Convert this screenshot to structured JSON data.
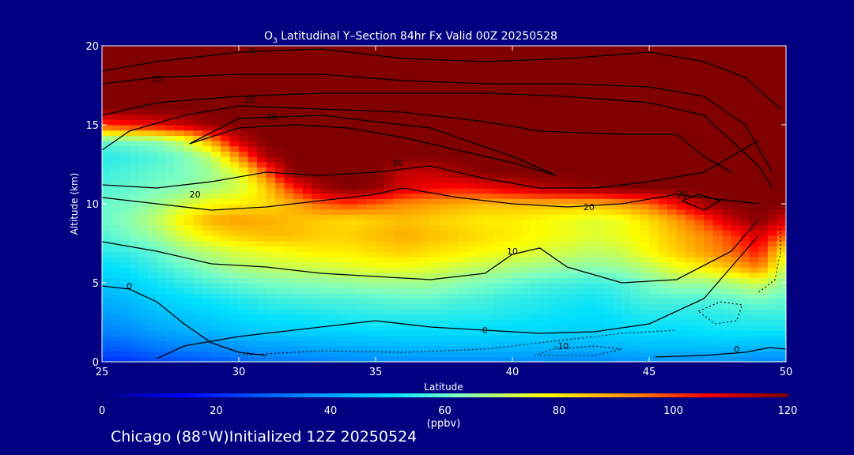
{
  "chart_data": {
    "type": "heatmap",
    "title_main": "O",
    "title_sub": "3",
    "title_rest": " Latitudinal Y–Section 84hr  Fx Valid 00Z 20250528",
    "xlabel": "Latitude",
    "ylabel": "Altitude (km)",
    "xlim": [
      25,
      50
    ],
    "ylim": [
      0,
      20
    ],
    "x_ticks": [
      "25",
      "30",
      "35",
      "40",
      "45",
      "50"
    ],
    "y_ticks": [
      "0",
      "5",
      "10",
      "15",
      "20"
    ],
    "colorbar": {
      "ticks": [
        "0",
        "20",
        "40",
        "60",
        "80",
        "100",
        "120"
      ],
      "unit_label": "(ppbv)",
      "range": [
        0,
        120
      ],
      "colors": [
        "#000080",
        "#0000ff",
        "#0080ff",
        "#00e0ff",
        "#80ffc0",
        "#ffff00",
        "#ff8000",
        "#ff0000",
        "#800000"
      ]
    },
    "contour_labels": [
      "0",
      "10",
      "20",
      "30",
      "-10"
    ],
    "rows_altitude_km": [
      0,
      1,
      2,
      3,
      4,
      5,
      6,
      7,
      8,
      9,
      10,
      11,
      12,
      13,
      14,
      15,
      16,
      17,
      18,
      19,
      20
    ],
    "cols_latitude": [
      25,
      26,
      27,
      28,
      29,
      30,
      31,
      32,
      33,
      34,
      35,
      36,
      37,
      38,
      39,
      40,
      41,
      42,
      43,
      44,
      45,
      46,
      47,
      48,
      49,
      50
    ],
    "ozone_ppbv": [
      [
        22,
        22,
        25,
        26,
        28,
        30,
        32,
        33,
        34,
        35,
        36,
        36,
        36,
        36,
        36,
        36,
        36,
        35,
        35,
        36,
        37,
        37,
        37,
        37,
        35,
        35
      ],
      [
        28,
        30,
        33,
        35,
        36,
        38,
        40,
        40,
        42,
        42,
        43,
        44,
        44,
        44,
        44,
        44,
        44,
        43,
        43,
        44,
        45,
        45,
        45,
        45,
        44,
        44
      ],
      [
        34,
        36,
        40,
        42,
        44,
        46,
        47,
        48,
        48,
        49,
        50,
        50,
        50,
        50,
        50,
        49,
        49,
        48,
        48,
        49,
        50,
        50,
        51,
        52,
        52,
        52
      ],
      [
        38,
        41,
        44,
        46,
        48,
        50,
        52,
        52,
        53,
        54,
        55,
        55,
        55,
        54,
        54,
        53,
        52,
        51,
        50,
        52,
        54,
        54,
        54,
        55,
        56,
        56
      ],
      [
        42,
        44,
        48,
        50,
        52,
        54,
        56,
        57,
        58,
        58,
        59,
        60,
        60,
        58,
        57,
        55,
        54,
        53,
        52,
        55,
        58,
        58,
        58,
        60,
        62,
        60
      ],
      [
        46,
        48,
        52,
        55,
        58,
        60,
        62,
        63,
        64,
        65,
        66,
        66,
        66,
        64,
        62,
        60,
        58,
        57,
        56,
        58,
        62,
        66,
        66,
        68,
        72,
        64
      ],
      [
        50,
        52,
        56,
        60,
        64,
        68,
        70,
        72,
        72,
        74,
        76,
        76,
        75,
        72,
        70,
        68,
        66,
        65,
        64,
        66,
        70,
        76,
        80,
        86,
        94,
        70
      ],
      [
        54,
        56,
        60,
        66,
        70,
        74,
        76,
        78,
        80,
        80,
        82,
        84,
        82,
        80,
        78,
        76,
        74,
        72,
        70,
        72,
        78,
        84,
        90,
        96,
        104,
        78
      ],
      [
        58,
        62,
        66,
        74,
        80,
        84,
        86,
        86,
        84,
        84,
        86,
        88,
        86,
        84,
        82,
        80,
        78,
        76,
        74,
        76,
        80,
        86,
        92,
        100,
        110,
        96
      ],
      [
        60,
        64,
        70,
        80,
        88,
        90,
        88,
        86,
        84,
        82,
        84,
        86,
        84,
        82,
        80,
        80,
        78,
        76,
        74,
        76,
        82,
        90,
        100,
        112,
        120,
        110
      ],
      [
        60,
        62,
        66,
        72,
        78,
        80,
        82,
        88,
        96,
        100,
        96,
        92,
        90,
        88,
        86,
        86,
        86,
        86,
        86,
        90,
        96,
        106,
        116,
        120,
        120,
        120
      ],
      [
        58,
        60,
        62,
        64,
        68,
        72,
        84,
        102,
        116,
        120,
        118,
        110,
        106,
        104,
        106,
        110,
        114,
        116,
        118,
        120,
        120,
        120,
        120,
        120,
        120,
        120
      ],
      [
        56,
        58,
        60,
        62,
        66,
        74,
        96,
        120,
        120,
        120,
        120,
        112,
        112,
        116,
        120,
        120,
        120,
        120,
        120,
        120,
        120,
        120,
        120,
        120,
        120,
        120
      ],
      [
        54,
        56,
        58,
        62,
        70,
        92,
        116,
        120,
        120,
        120,
        120,
        120,
        120,
        120,
        120,
        120,
        120,
        120,
        120,
        120,
        120,
        120,
        120,
        120,
        120,
        120
      ],
      [
        60,
        62,
        64,
        72,
        90,
        112,
        120,
        120,
        120,
        120,
        120,
        120,
        120,
        120,
        120,
        120,
        120,
        120,
        120,
        120,
        120,
        120,
        120,
        120,
        120,
        120
      ],
      [
        100,
        104,
        108,
        112,
        118,
        120,
        120,
        120,
        120,
        120,
        120,
        120,
        120,
        120,
        120,
        120,
        120,
        120,
        120,
        120,
        120,
        120,
        120,
        120,
        120,
        120
      ],
      [
        120,
        120,
        120,
        120,
        120,
        120,
        120,
        120,
        120,
        120,
        120,
        120,
        120,
        120,
        120,
        120,
        120,
        120,
        120,
        120,
        120,
        120,
        120,
        120,
        120,
        120
      ],
      [
        120,
        120,
        120,
        120,
        120,
        120,
        120,
        120,
        120,
        120,
        120,
        120,
        120,
        120,
        120,
        120,
        120,
        120,
        120,
        120,
        120,
        120,
        120,
        120,
        120,
        120
      ],
      [
        120,
        120,
        120,
        120,
        120,
        120,
        120,
        120,
        120,
        120,
        120,
        120,
        120,
        120,
        120,
        120,
        120,
        120,
        120,
        120,
        120,
        120,
        120,
        120,
        120,
        120
      ],
      [
        120,
        120,
        120,
        120,
        120,
        120,
        120,
        120,
        120,
        120,
        120,
        120,
        120,
        120,
        120,
        120,
        120,
        120,
        120,
        120,
        120,
        120,
        120,
        120,
        120,
        120
      ],
      [
        120,
        120,
        120,
        120,
        120,
        120,
        120,
        120,
        120,
        120,
        120,
        120,
        120,
        120,
        120,
        120,
        120,
        120,
        120,
        120,
        120,
        120,
        120,
        120,
        120,
        120
      ]
    ]
  },
  "footer": {
    "text": "Chicago (88°W)Initialized 12Z 20250524"
  }
}
